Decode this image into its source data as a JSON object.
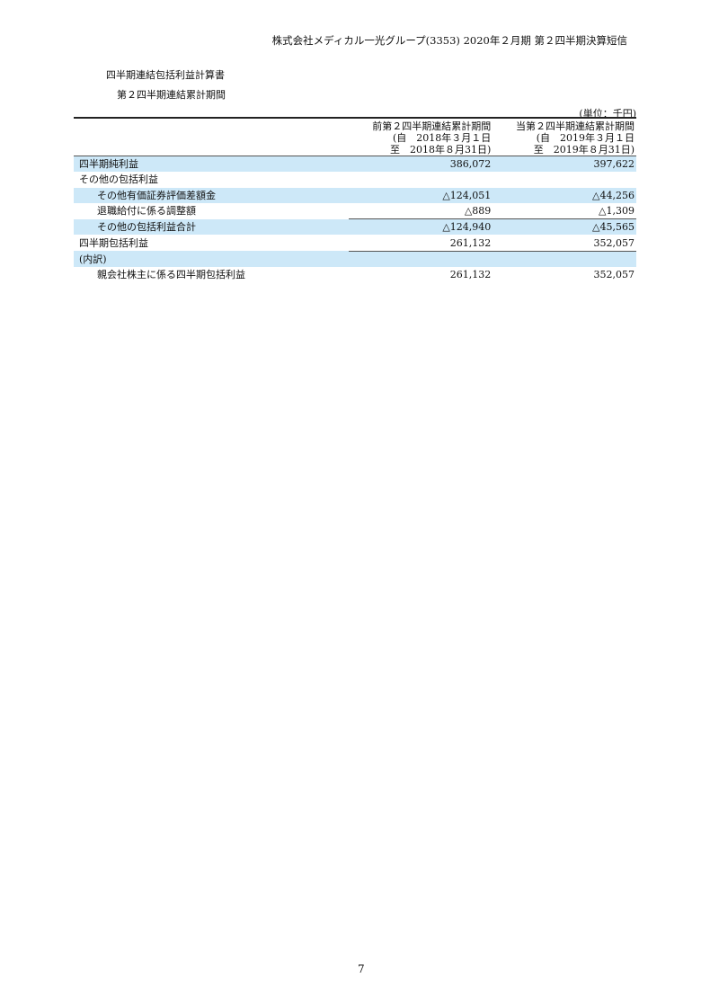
{
  "header": "株式会社メディカル一光グループ(3353) 2020年２月期 第２四半期決算短信",
  "title": "四半期連結包括利益計算書",
  "subtitle": "第２四半期連結累計期間",
  "unit": "(単位：千円)",
  "columns": [
    {
      "line1": "前第２四半期連結累計期間",
      "line2": "(自　2018年３月１日",
      "line3": "至　2018年８月31日)"
    },
    {
      "line1": "当第２四半期連結累計期間",
      "line2": "(自　2019年３月１日",
      "line3": "至　2019年８月31日)"
    }
  ],
  "rows": [
    {
      "label": "四半期純利益",
      "prev": "386,072",
      "curr": "397,622"
    },
    {
      "label": "その他の包括利益",
      "prev": "",
      "curr": ""
    },
    {
      "label": "その他有価証券評価差額金",
      "prev": "△124,051",
      "curr": "△44,256"
    },
    {
      "label": "退職給付に係る調整額",
      "prev": "△889",
      "curr": "△1,309"
    },
    {
      "label": "その他の包括利益合計",
      "prev": "△124,940",
      "curr": "△45,565"
    },
    {
      "label": "四半期包括利益",
      "prev": "261,132",
      "curr": "352,057"
    },
    {
      "label": "(内訳)",
      "prev": "",
      "curr": ""
    },
    {
      "label": "親会社株主に係る四半期包括利益",
      "prev": "261,132",
      "curr": "352,057"
    }
  ],
  "page_number": "7",
  "highlight_color": "#cde8f8"
}
